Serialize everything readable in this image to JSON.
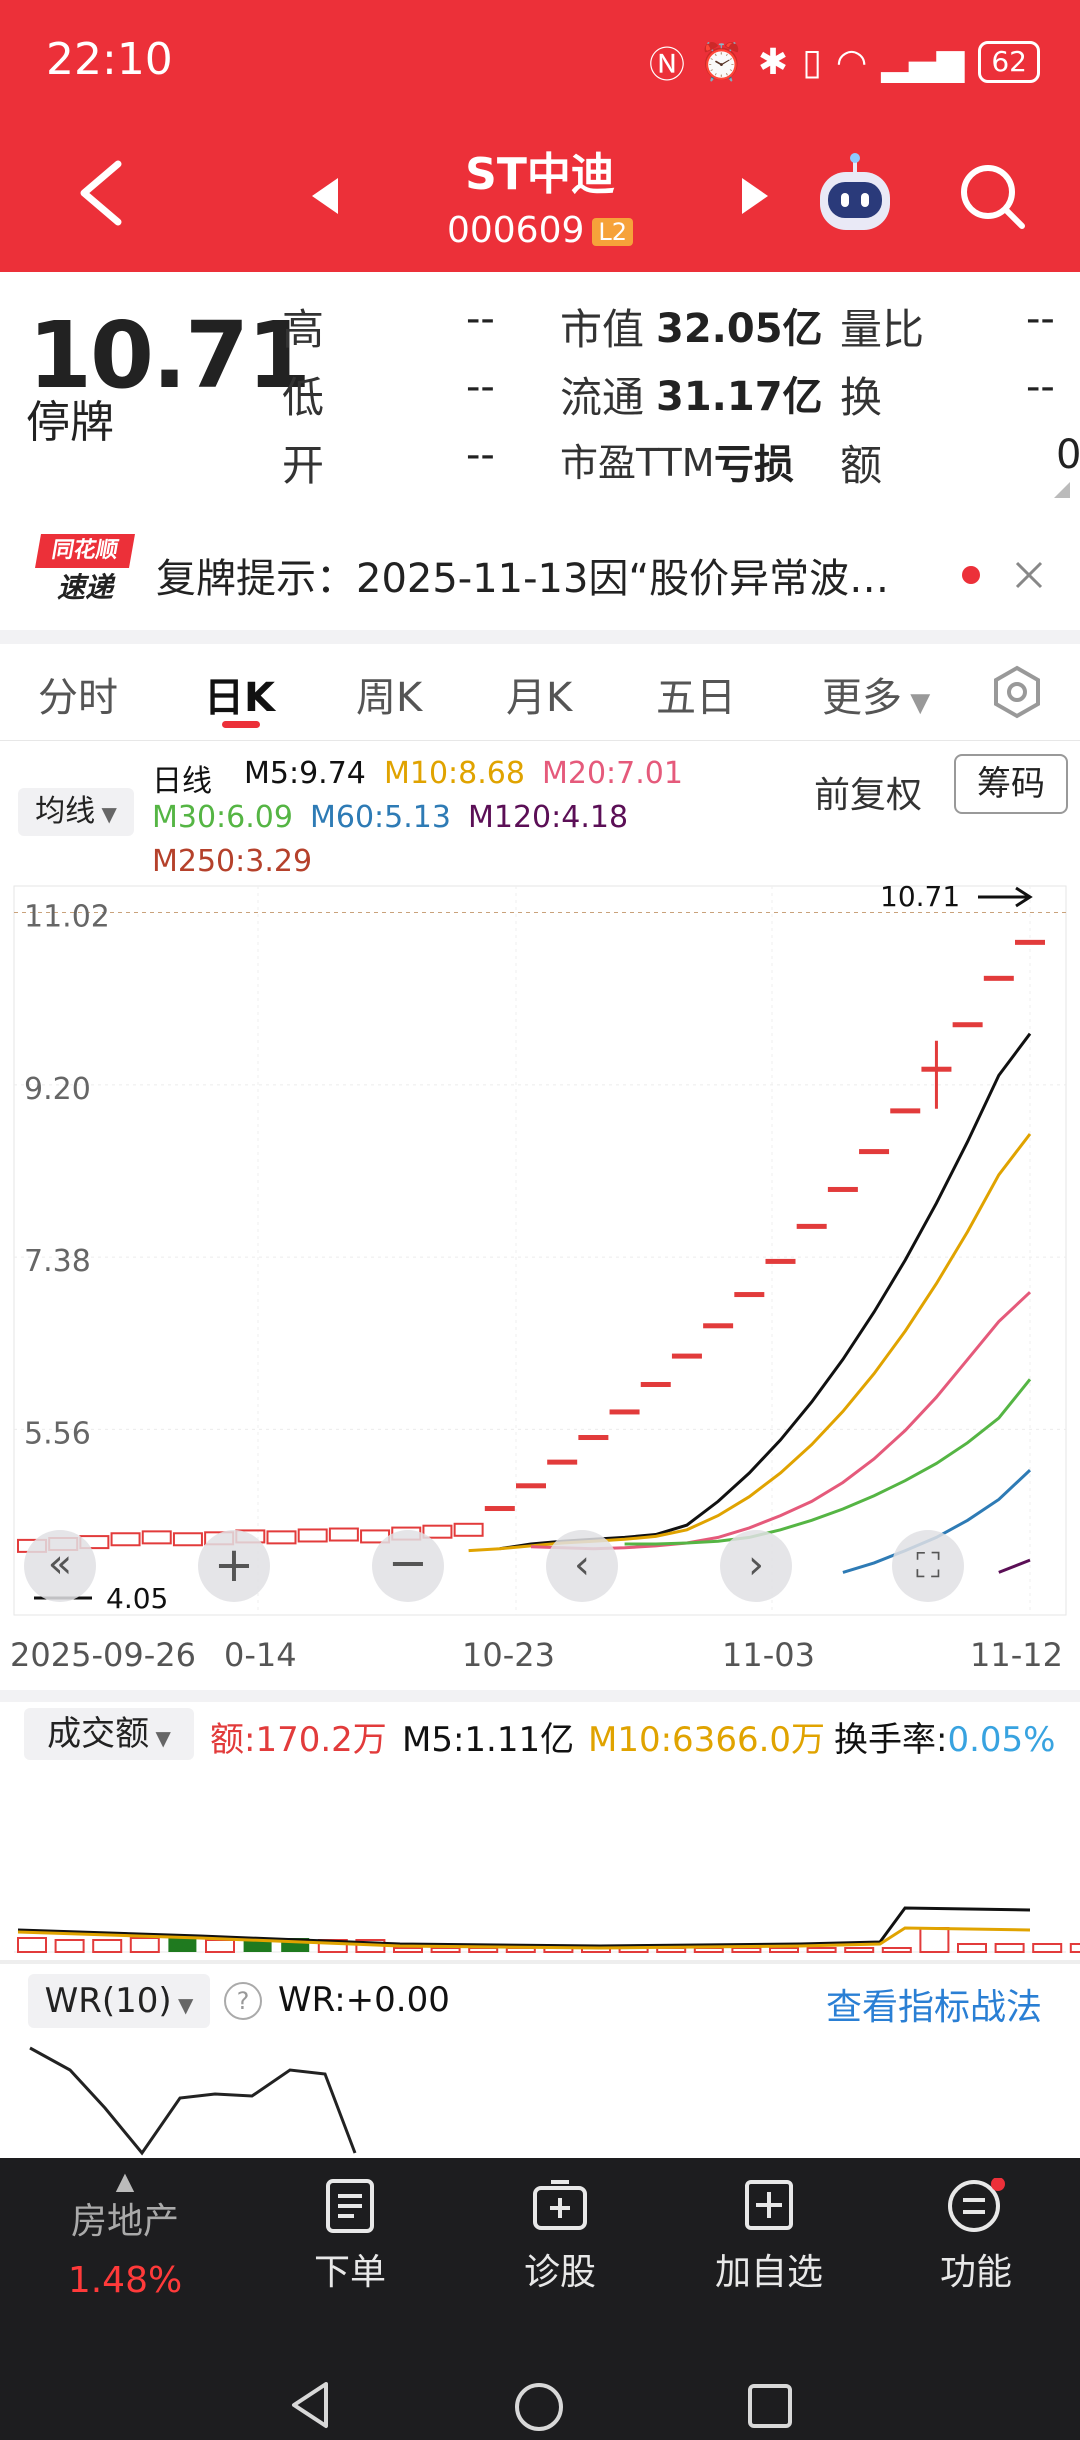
{
  "status": {
    "time": "22:10",
    "battery": "62"
  },
  "header": {
    "title": "ST中迪",
    "code": "000609",
    "level": "L2"
  },
  "quote": {
    "price": "10.71",
    "state": "停牌",
    "rows": [
      {
        "l1": "高",
        "v1": "--",
        "l2": "市值",
        "v2": "32.05亿",
        "l3": "量比",
        "v3": "--"
      },
      {
        "l1": "低",
        "v1": "--",
        "l2": "流通",
        "v2": "31.17亿",
        "l3": "换",
        "v3": "--"
      },
      {
        "l1": "开",
        "v1": "--",
        "l2": "市盈TTM",
        "v2": "亏损",
        "l3": "额",
        "v3": "0"
      }
    ]
  },
  "notice": {
    "brand_top": "同花顺",
    "brand_bottom": "速递",
    "text": "复牌提示：2025-11-13因“股价异常波…"
  },
  "tabs": [
    "分时",
    "日K",
    "周K",
    "月K",
    "五日",
    "更多"
  ],
  "active_tab": "日K",
  "ma": {
    "selector": "均线",
    "period": "日线",
    "items": [
      {
        "label": "M5:9.74",
        "color": "#111111"
      },
      {
        "label": "M10:8.68",
        "color": "#e0a300"
      },
      {
        "label": "M20:7.01",
        "color": "#e55a7b"
      },
      {
        "label": "M30:6.09",
        "color": "#55b544"
      },
      {
        "label": "M60:5.13",
        "color": "#2e7bb5"
      },
      {
        "label": "M120:4.18",
        "color": "#5b0f56"
      },
      {
        "label": "M250:3.29",
        "color": "#b5412b"
      }
    ],
    "adjust": "前复权",
    "chips": "筹码"
  },
  "chart_data": {
    "type": "candlestick",
    "y_ticks": [
      "11.02",
      "9.20",
      "7.38",
      "5.56"
    ],
    "x_ticks": [
      "2025-09-26",
      "0-14",
      "10-23",
      "11-03",
      "11-12"
    ],
    "last_price_label": "10.71",
    "low_marker": "4.05",
    "closes": [
      4.33,
      4.35,
      4.37,
      4.4,
      4.42,
      4.4,
      4.41,
      4.43,
      4.42,
      4.44,
      4.45,
      4.43,
      4.46,
      4.48,
      4.5,
      4.73,
      4.97,
      5.22,
      5.48,
      5.75,
      6.04,
      6.34,
      6.66,
      6.99,
      7.34,
      7.71,
      8.1,
      8.5,
      8.93,
      9.37,
      9.84,
      10.33,
      10.71
    ],
    "ma_series": [
      {
        "name": "M5",
        "values": [
          4.3,
          4.35,
          4.38,
          4.4,
          4.42,
          4.45,
          4.55,
          4.8,
          5.1,
          5.45,
          5.85,
          6.3,
          6.8,
          7.35,
          7.95,
          8.6,
          9.3,
          9.74
        ]
      },
      {
        "name": "M10",
        "values": [
          4.28,
          4.3,
          4.33,
          4.36,
          4.38,
          4.4,
          4.43,
          4.5,
          4.65,
          4.85,
          5.1,
          5.4,
          5.75,
          6.15,
          6.6,
          7.1,
          7.65,
          8.25,
          8.68
        ]
      },
      {
        "name": "M20",
        "values": [
          4.32,
          4.31,
          4.3,
          4.31,
          4.33,
          4.36,
          4.42,
          4.52,
          4.65,
          4.8,
          5.0,
          5.25,
          5.55,
          5.9,
          6.3,
          6.7,
          7.01
        ]
      },
      {
        "name": "M30",
        "values": [
          4.35,
          4.35,
          4.36,
          4.38,
          4.42,
          4.5,
          4.6,
          4.72,
          4.86,
          5.02,
          5.2,
          5.42,
          5.68,
          6.09
        ]
      },
      {
        "name": "M60",
        "values": [
          4.05,
          4.15,
          4.28,
          4.42,
          4.6,
          4.82,
          5.13
        ]
      },
      {
        "name": "M120",
        "values": [
          4.05,
          4.18
        ]
      }
    ]
  },
  "volume": {
    "selector": "成交额",
    "amount": "额:170.2万",
    "m5": "M5:1.11亿",
    "m10": "M10:6366.0万",
    "turnover_label": "换手率:",
    "turnover_value": "0.05%"
  },
  "wr": {
    "selector": "WR(10)",
    "value": "WR:+0.00",
    "link": "查看指标战法"
  },
  "toolbar": {
    "sector_name": "房地产",
    "sector_change": "1.48%",
    "items": [
      "下单",
      "诊股",
      "加自选",
      "功能"
    ]
  }
}
